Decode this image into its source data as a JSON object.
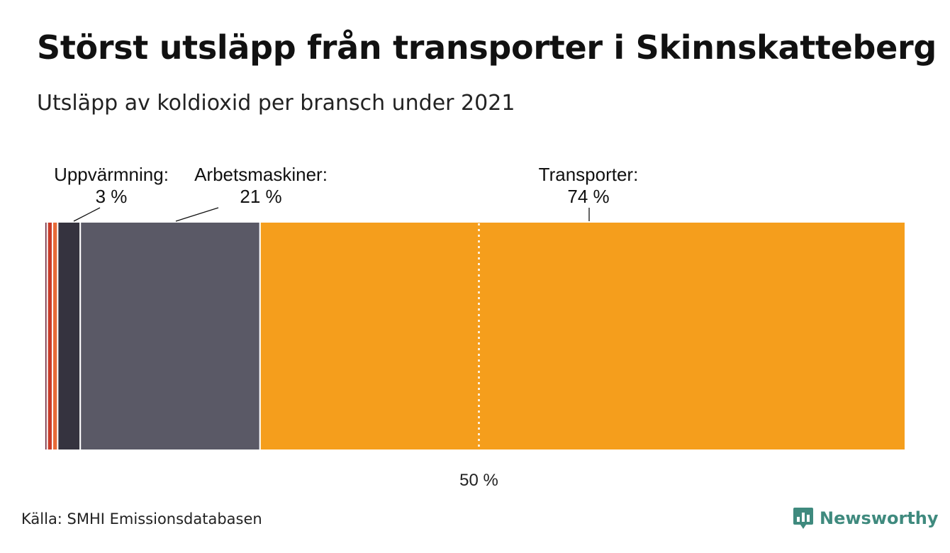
{
  "title": "Störst utsläpp från transporter i Skinnskatteberg",
  "subtitle": "Utsläpp av koldioxid per bransch under 2021",
  "source": "Källa: SMHI Emissionsdatabasen",
  "brand": "Newsworthy",
  "colors": {
    "transporter": "#f59e1c",
    "arbetsmaskiner": "#5a5966",
    "uppvarmning": "#35333f",
    "brand": "#3f8a7e"
  },
  "chart_data": {
    "type": "bar",
    "orientation": "horizontal-stacked",
    "unit": "%",
    "xlim": [
      0,
      100
    ],
    "segments": [
      {
        "value": 0.3,
        "color": "#6b1f33"
      },
      {
        "value": 0.6,
        "color": "#c93c2a"
      },
      {
        "value": 0.6,
        "color": "#e86a38"
      },
      {
        "name": "Uppvärmning:",
        "label": "3 %",
        "value": 2.6,
        "color": "#35333f"
      },
      {
        "name": "Arbetsmaskiner:",
        "label": "21 %",
        "value": 20.7,
        "color": "#5a5966"
      },
      {
        "name": "Transporter:",
        "label": "74 %",
        "value": 74.3,
        "color": "#f59e1c"
      }
    ],
    "reference_line": {
      "value": 50,
      "label": "50 %"
    }
  }
}
